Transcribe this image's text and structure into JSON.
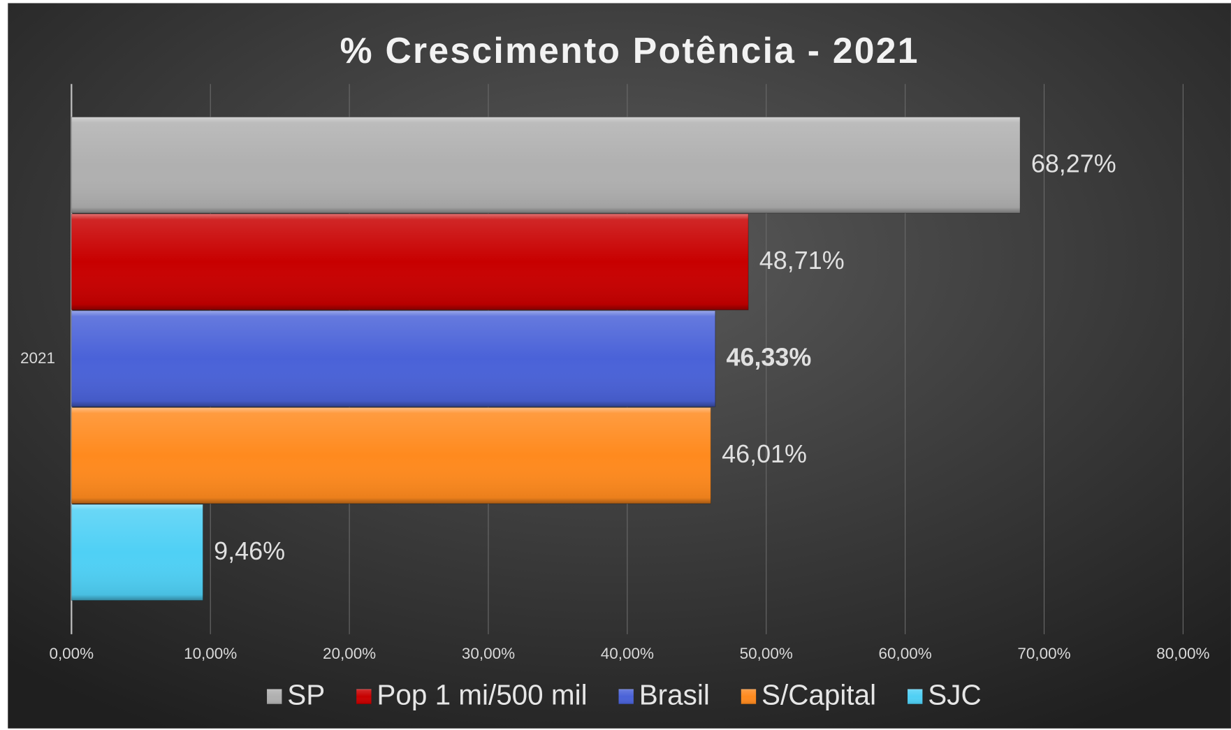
{
  "chart_data": {
    "type": "hbar",
    "title": "% Crescimento Potência - 2021",
    "categories": [
      "2021"
    ],
    "series": [
      {
        "name": "SP",
        "color": "#b0b0b0",
        "values": [
          68.27
        ],
        "value_labels": [
          "68,27%"
        ]
      },
      {
        "name": "Pop 1 mi/500 mil",
        "color": "#c80000",
        "values": [
          48.71
        ],
        "value_labels": [
          "48,71%"
        ]
      },
      {
        "name": "Brasil",
        "color": "#4a62d8",
        "values": [
          46.33
        ],
        "value_labels": [
          "46,33%"
        ]
      },
      {
        "name": "S/Capital",
        "color": "#ff8a1e",
        "values": [
          46.01
        ],
        "value_labels": [
          "46,01%"
        ]
      },
      {
        "name": "SJC",
        "color": "#4fd0f5",
        "values": [
          9.46
        ],
        "value_labels": [
          "9,46%"
        ]
      }
    ],
    "xlim": [
      0,
      80
    ],
    "xticks": [
      {
        "value": 0,
        "label": "0,00%"
      },
      {
        "value": 10,
        "label": "10,00%"
      },
      {
        "value": 20,
        "label": "20,00%"
      },
      {
        "value": 30,
        "label": "30,00%"
      },
      {
        "value": 40,
        "label": "40,00%"
      },
      {
        "value": 50,
        "label": "50,00%"
      },
      {
        "value": 60,
        "label": "60,00%"
      },
      {
        "value": 70,
        "label": "70,00%"
      },
      {
        "value": 80,
        "label": "80,00%"
      }
    ],
    "grid": true,
    "legend": "bottom"
  }
}
